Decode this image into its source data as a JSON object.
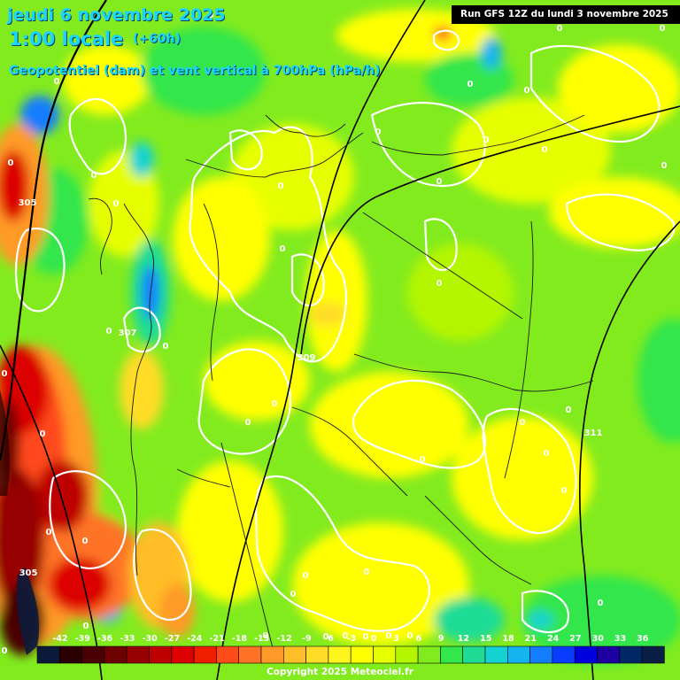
{
  "header": {
    "date_line": "jeudi 6 novembre 2025",
    "time_line": "1:00 locale",
    "offset": "(+60h)",
    "subtitle": "Geopotentiel (dam) et vent vertical à 700hPa (hPa/h)",
    "run": "Run GFS 12Z du lundi 3 novembre 2025"
  },
  "colorbar": {
    "ticks": [
      "-42",
      "-39",
      "-36",
      "-33",
      "-30",
      "-27",
      "-24",
      "-21",
      "-18",
      "-15",
      "-12",
      "-9",
      "-6",
      "-3",
      "0",
      "3",
      "6",
      "9",
      "12",
      "15",
      "18",
      "21",
      "24",
      "27",
      "30",
      "33",
      "36"
    ],
    "colors": [
      "#0b1a3a",
      "#2a0000",
      "#4a0000",
      "#6e0000",
      "#960000",
      "#be0000",
      "#dc0000",
      "#f01e00",
      "#ff4a1a",
      "#ff7328",
      "#ff9a28",
      "#ffbe28",
      "#ffdc28",
      "#fff51e",
      "#ffff00",
      "#e6ff00",
      "#b4f500",
      "#82eb1e",
      "#32e64b",
      "#1edc96",
      "#14d2d2",
      "#14b4f0",
      "#147dff",
      "#0a3cff",
      "#0000dc",
      "#1e00a0",
      "#002864",
      "#0a1e46"
    ]
  },
  "contours": [
    {
      "value": "305",
      "kind": "geopotential"
    },
    {
      "value": "307",
      "kind": "geopotential"
    },
    {
      "value": "309",
      "kind": "geopotential"
    },
    {
      "value": "311",
      "kind": "geopotential"
    },
    {
      "value": "305",
      "kind": "geopotential"
    }
  ],
  "zero_labels": [
    "0",
    "0",
    "0",
    "0",
    "0",
    "0",
    "0",
    "0",
    "0",
    "0",
    "0",
    "0",
    "0",
    "0",
    "0",
    "0",
    "0",
    "0",
    "0",
    "0",
    "0",
    "0",
    "0",
    "0",
    "0",
    "0",
    "0",
    "0",
    "0",
    "0",
    "0",
    "0",
    "0",
    "0",
    "0",
    "0",
    "0",
    "0",
    "0",
    "0",
    "0",
    "0"
  ],
  "copyright": "Copyright 2025 Meteociel.fr",
  "colors": {
    "title": "#1ad6ff",
    "contour": "#ffffff",
    "geopotential": "#000000"
  }
}
